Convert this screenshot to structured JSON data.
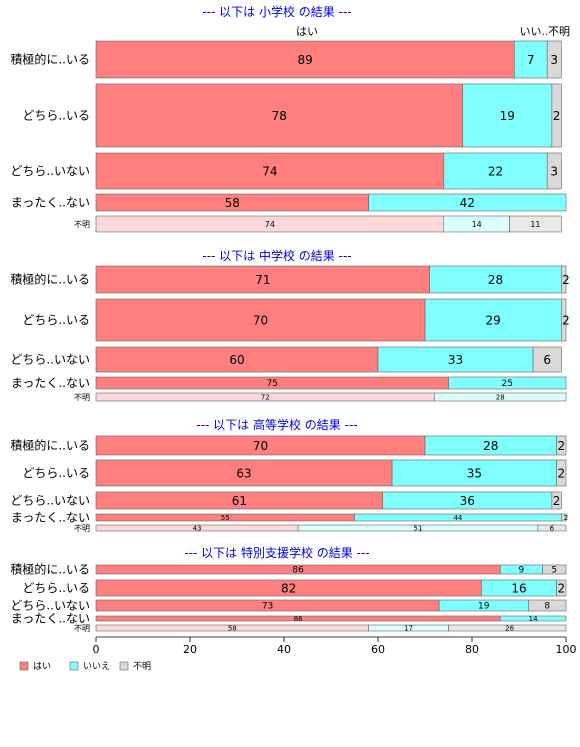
{
  "chart_data": {
    "type": "bar",
    "orientation": "horizontal",
    "stacked": true,
    "percent": true,
    "xlim": [
      0,
      100
    ],
    "xticks": [
      0,
      20,
      40,
      60,
      80,
      100
    ],
    "legend_position": "bottom-left",
    "colors": {
      "はい": "#ff7f7f",
      "いいえ": "#7fffff",
      "不明": "#d9d9d9",
      "faded_はい": "#ffd9d9",
      "faded_いいえ": "#d9ffff",
      "faded_不明": "#e8e8e8"
    },
    "column_headers": [
      "はい",
      "いい..",
      "不明"
    ],
    "legend": [
      "はい",
      "いいえ",
      "不明"
    ],
    "sections": [
      {
        "title": "--- 以下は 小学校 の結果 ---",
        "rows": [
          {
            "label": "積極的に..いる",
            "values": [
              89,
              7,
              3
            ]
          },
          {
            "label": "どちら..いる",
            "values": [
              78,
              19,
              2
            ]
          },
          {
            "label": "どちら..いない",
            "values": [
              74,
              22,
              3
            ]
          },
          {
            "label": "まったく..ない",
            "values": [
              58,
              42,
              0
            ],
            "value_labels": [
              "58",
              "42",
              ""
            ]
          },
          {
            "label": "不明",
            "values": [
              74,
              14,
              11
            ],
            "faded": true
          }
        ]
      },
      {
        "title": "--- 以下は 中学校 の結果 ---",
        "rows": [
          {
            "label": "積極的に..いる",
            "values": [
              71,
              28,
              2
            ]
          },
          {
            "label": "どちら..いる",
            "values": [
              70,
              29,
              2
            ]
          },
          {
            "label": "どちら..いない",
            "values": [
              60,
              33,
              6
            ]
          },
          {
            "label": "まったく..ない",
            "values": [
              75,
              25,
              0
            ],
            "value_labels": [
              "75",
              "25",
              ""
            ]
          },
          {
            "label": "不明",
            "values": [
              72,
              28,
              0
            ],
            "value_labels": [
              "72",
              "28",
              ""
            ],
            "faded": true
          }
        ]
      },
      {
        "title": "--- 以下は 高等学校 の結果 ---",
        "rows": [
          {
            "label": "積極的に..いる",
            "values": [
              70,
              28,
              2
            ]
          },
          {
            "label": "どちら..いる",
            "values": [
              63,
              35,
              2
            ]
          },
          {
            "label": "どちら..いない",
            "values": [
              61,
              36,
              2
            ]
          },
          {
            "label": "まったく..ない",
            "values": [
              55,
              44,
              2
            ]
          },
          {
            "label": "不明",
            "values": [
              43,
              51,
              6
            ],
            "faded": true
          }
        ]
      },
      {
        "title": "--- 以下は 特別支援学校 の結果 ---",
        "rows": [
          {
            "label": "積極的に..いる",
            "values": [
              86,
              9,
              5
            ]
          },
          {
            "label": "どちら..いる",
            "values": [
              82,
              16,
              2
            ]
          },
          {
            "label": "どちら..いない",
            "values": [
              73,
              19,
              8
            ]
          },
          {
            "label": "まったく..ない",
            "values": [
              86,
              14,
              0
            ],
            "value_labels": [
              "86",
              "14",
              ""
            ]
          },
          {
            "label": "不明",
            "values": [
              58,
              17,
              26
            ],
            "faded": true
          }
        ]
      }
    ]
  }
}
